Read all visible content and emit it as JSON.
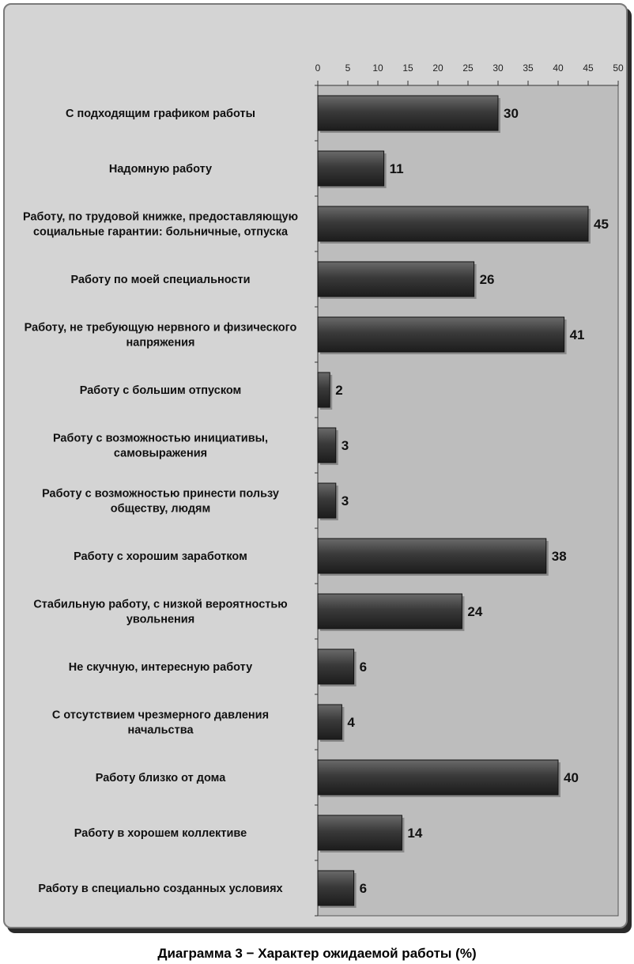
{
  "chart_data": {
    "type": "bar",
    "orientation": "horizontal",
    "title": "Диаграмма 3 − Характер ожидаемой работы (%)",
    "xlabel": "",
    "ylabel": "",
    "xlim": [
      0,
      50
    ],
    "ticks": [
      0,
      5,
      10,
      15,
      20,
      25,
      30,
      35,
      40,
      45,
      50
    ],
    "axis_position": "top",
    "grid": false,
    "categories": [
      [
        "С подходящим графиком работы"
      ],
      [
        "Надомную работу"
      ],
      [
        "Работу, по трудовой книжке, предоставляющую",
        "социальные гарантии: больничные, отпуска"
      ],
      [
        "Работу по моей специальности"
      ],
      [
        "Работу, не требующую нервного и физического",
        "напряжения"
      ],
      [
        "Работу с большим отпуском"
      ],
      [
        "Работу с возможностью инициативы,",
        "самовыражения"
      ],
      [
        "Работу с возможностью принести пользу",
        "обществу, людям"
      ],
      [
        "Работу с хорошим заработком"
      ],
      [
        "Стабильную работу, с низкой вероятностью",
        "увольнения"
      ],
      [
        "Не скучную, интересную работу"
      ],
      [
        "С отсутствием чрезмерного давления",
        "начальства"
      ],
      [
        "Работу близко от дома"
      ],
      [
        "Работу в хорошем коллективе"
      ],
      [
        "Работу в специально созданных условиях"
      ]
    ],
    "values": [
      30,
      11,
      45,
      26,
      41,
      2,
      3,
      3,
      38,
      24,
      6,
      4,
      40,
      14,
      6
    ],
    "colors": {
      "bar_top": "#6a6a6a",
      "bar_mid": "#3a3a3a",
      "bar_bottom": "#1c1c1c",
      "plot_bg": "#bdbdbd",
      "frame_bg": "#d4d4d4"
    }
  }
}
